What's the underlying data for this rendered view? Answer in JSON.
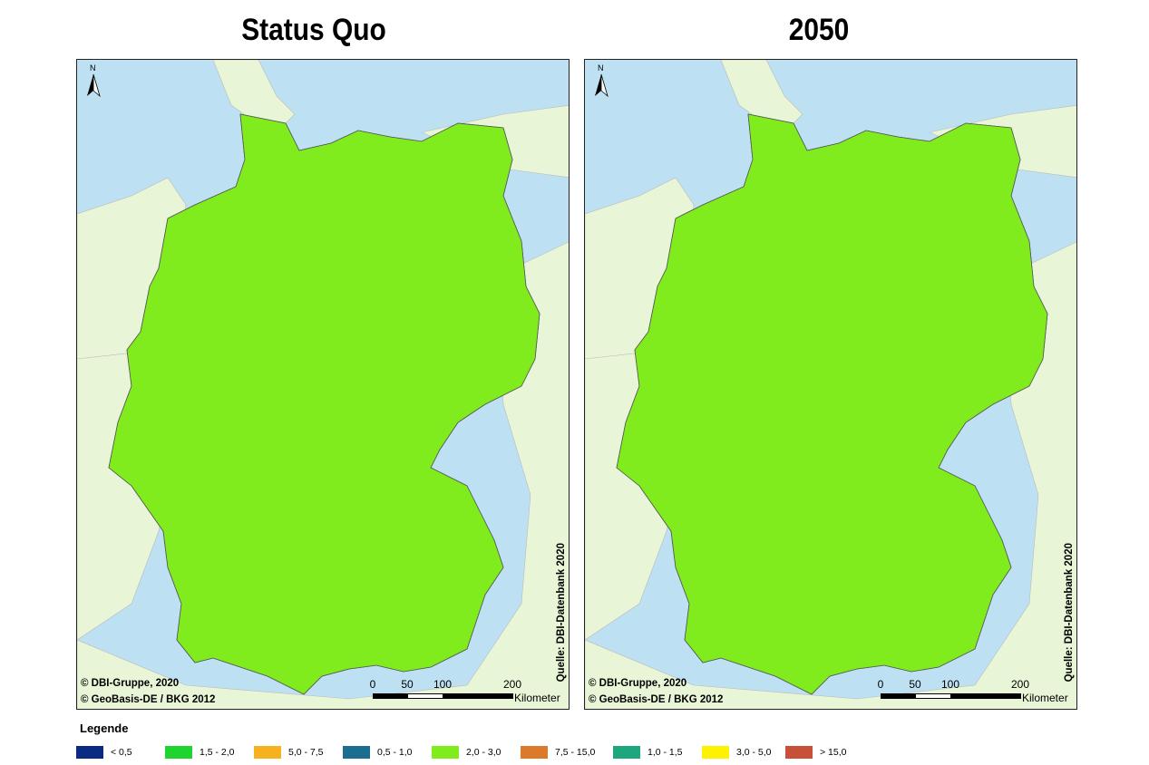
{
  "colors": {
    "lt05": "#0b2a83",
    "c05_10": "#1c6e91",
    "c10_15": "#1ea67e",
    "c15_20": "#1fd42e",
    "c20_30": "#80ec1d",
    "c30_50": "#fff200",
    "c50_75": "#f5b21e",
    "c75_15": "#dc7a2b",
    "gt15": "#c65138",
    "sea": "#bde0f2",
    "land": "#e8f5d6"
  },
  "titles": {
    "left": "Status Quo",
    "right": "2050"
  },
  "credits": {
    "line1": "© DBI-Gruppe, 2020",
    "line2": "© GeoBasis-DE / BKG 2012"
  },
  "source": "Quelle: DBI-Datenbank 2020",
  "north_label": "N",
  "scale": {
    "ticks": [
      "0",
      "50",
      "100",
      "200"
    ],
    "unit": "Kilometer"
  },
  "legend": {
    "title": "Legende",
    "items": [
      {
        "label": "< 0,5",
        "color": "#0b2a83"
      },
      {
        "label": "1,5 - 2,0",
        "color": "#1fd42e"
      },
      {
        "label": "5,0 - 7,5",
        "color": "#f5b21e"
      },
      {
        "label": "0,5 - 1,0",
        "color": "#1c6e91"
      },
      {
        "label": "2,0 - 3,0",
        "color": "#80ec1d"
      },
      {
        "label": "7,5 - 15,0",
        "color": "#dc7a2b"
      },
      {
        "label": "1,0 - 1,5",
        "color": "#1ea67e"
      },
      {
        "label": "3,0 - 5,0",
        "color": "#fff200"
      },
      {
        "label": "> 15,0",
        "color": "#c65138"
      }
    ]
  }
}
